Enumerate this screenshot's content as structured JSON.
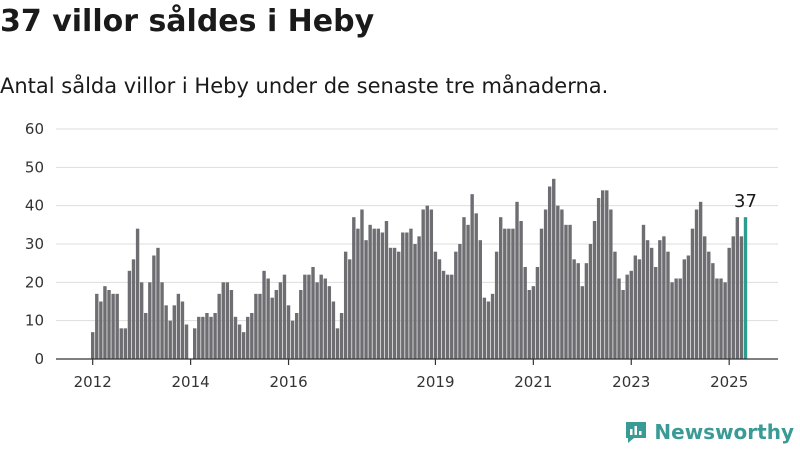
{
  "header": {
    "title": "37 villor såldes i Heby",
    "subtitle": "Antal sålda villor i Heby under de senaste tre månaderna."
  },
  "branding": {
    "logo_text": "Newsworthy",
    "logo_icon": "newsworthy-chart-icon",
    "logo_color": "#3a9b96"
  },
  "chart_data": {
    "type": "bar",
    "title": "",
    "xlabel": "",
    "ylabel": "",
    "ylim": [
      0,
      60
    ],
    "yticks": [
      0,
      10,
      20,
      30,
      40,
      50,
      60
    ],
    "xtick_labels": [
      "2012",
      "2014",
      "2016",
      "2019",
      "2021",
      "2023",
      "2025"
    ],
    "grid": true,
    "bar_color": "#6e6d72",
    "highlight_color": "#2a9d8f",
    "highlight_label": "37",
    "values": [
      7,
      17,
      15,
      19,
      18,
      17,
      17,
      8,
      8,
      23,
      26,
      34,
      20,
      12,
      20,
      27,
      29,
      20,
      14,
      10,
      14,
      17,
      15,
      9,
      0,
      8,
      11,
      11,
      12,
      11,
      12,
      17,
      20,
      20,
      18,
      11,
      9,
      7,
      11,
      12,
      17,
      17,
      23,
      21,
      16,
      18,
      20,
      22,
      14,
      10,
      12,
      18,
      22,
      22,
      24,
      20,
      22,
      21,
      19,
      15,
      8,
      12,
      28,
      26,
      37,
      34,
      39,
      31,
      35,
      34,
      34,
      33,
      36,
      29,
      29,
      28,
      33,
      33,
      34,
      30,
      32,
      39,
      40,
      39,
      28,
      26,
      23,
      22,
      22,
      28,
      30,
      37,
      35,
      43,
      38,
      31,
      16,
      15,
      17,
      28,
      37,
      34,
      34,
      34,
      41,
      36,
      24,
      18,
      19,
      24,
      34,
      39,
      45,
      47,
      40,
      39,
      35,
      35,
      26,
      25,
      19,
      25,
      30,
      36,
      42,
      44,
      44,
      39,
      28,
      21,
      18,
      22,
      23,
      27,
      26,
      35,
      31,
      29,
      24,
      31,
      32,
      28,
      20,
      21,
      21,
      26,
      27,
      34,
      39,
      41,
      32,
      28,
      25,
      21,
      21,
      20,
      29,
      32,
      37,
      32,
      37
    ]
  }
}
